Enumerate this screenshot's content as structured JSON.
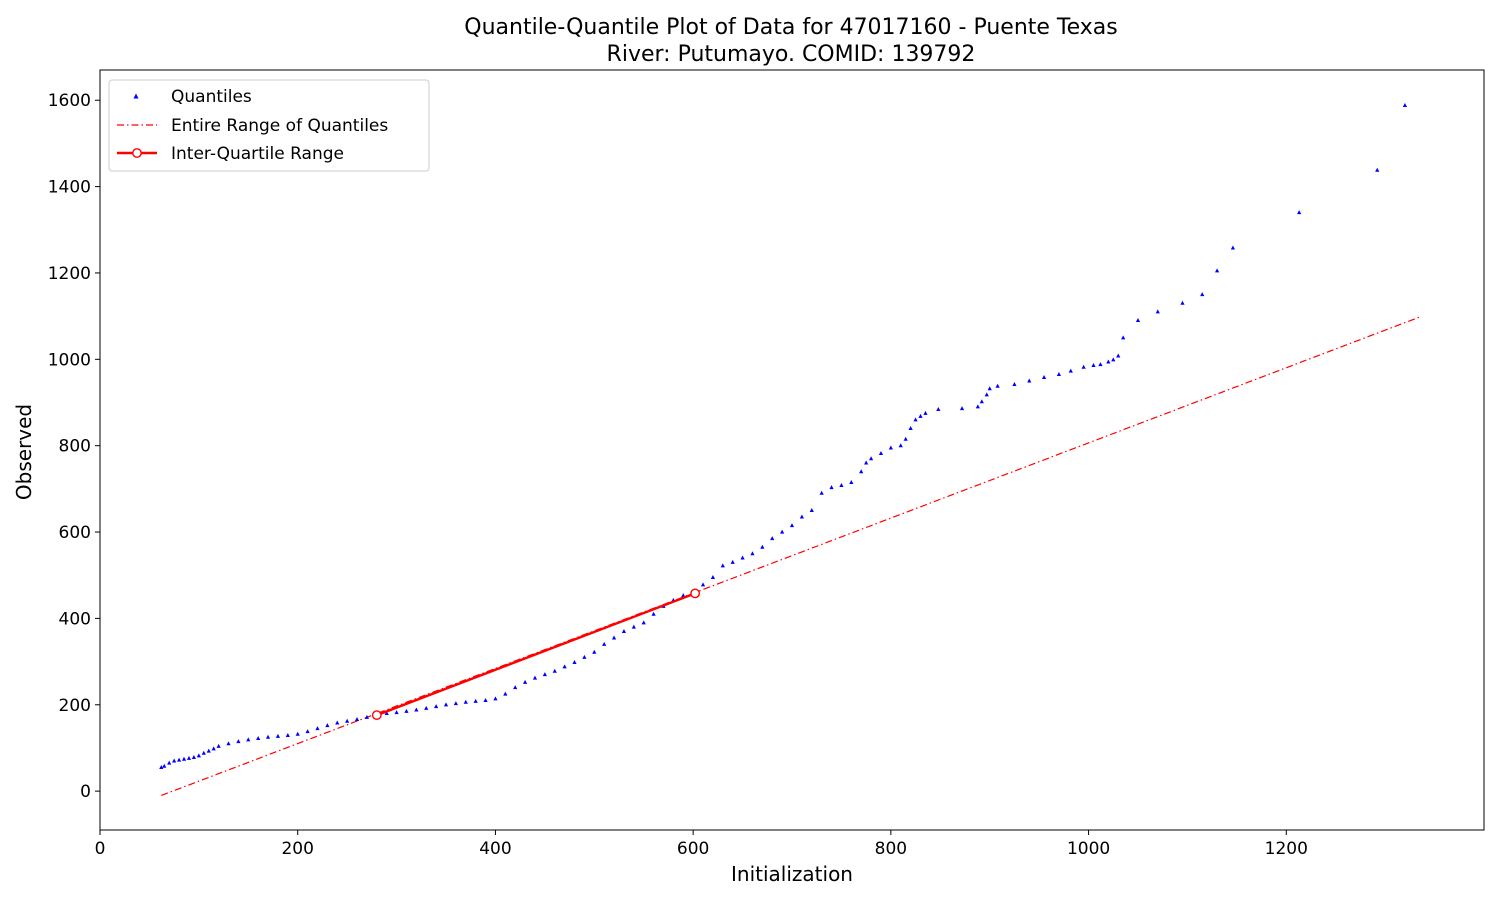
{
  "chart_data": {
    "type": "scatter",
    "title": "Quantile-Quantile Plot of Data for 47017160 - Puente Texas",
    "subtitle": "River: Putumayo. COMID: 139792",
    "xlabel": "Initialization",
    "ylabel": "Observed",
    "xlim": [
      0,
      1400
    ],
    "ylim": [
      -90,
      1670
    ],
    "xticks": [
      0,
      200,
      400,
      600,
      800,
      1000,
      1200
    ],
    "yticks": [
      0,
      200,
      400,
      600,
      800,
      1000,
      1200,
      1400,
      1600
    ],
    "grid": false,
    "legend_position": "upper-left",
    "legend": [
      "Quantiles",
      "Entire Range of Quantiles",
      "Inter-Quartile Range"
    ],
    "colors": {
      "quantiles": "#0000ff",
      "entire_range": "#ff0000",
      "iqr": "#ff0000"
    },
    "series": [
      {
        "name": "Quantiles",
        "style": "points",
        "x": [
          62,
          65,
          70,
          75,
          80,
          85,
          90,
          95,
          100,
          105,
          110,
          115,
          120,
          130,
          140,
          150,
          160,
          170,
          180,
          190,
          200,
          210,
          220,
          230,
          240,
          250,
          260,
          270,
          280,
          290,
          300,
          310,
          320,
          330,
          340,
          350,
          360,
          370,
          380,
          390,
          400,
          410,
          420,
          430,
          440,
          450,
          460,
          470,
          480,
          490,
          500,
          510,
          520,
          530,
          540,
          550,
          560,
          570,
          580,
          590,
          600,
          610,
          620,
          630,
          640,
          650,
          660,
          670,
          680,
          690,
          700,
          710,
          720,
          730,
          740,
          750,
          760,
          770,
          775,
          780,
          790,
          800,
          810,
          815,
          820,
          825,
          830,
          835,
          848,
          872,
          888,
          892,
          897,
          900,
          908,
          925,
          940,
          955,
          970,
          982,
          995,
          1005,
          1012,
          1020,
          1025,
          1030,
          1035,
          1050,
          1070,
          1095,
          1115,
          1130,
          1146,
          1213,
          1292,
          1320
        ],
        "y": [
          55,
          58,
          65,
          70,
          72,
          74,
          76,
          78,
          82,
          88,
          93,
          98,
          104,
          110,
          115,
          119,
          122,
          125,
          127,
          129,
          132,
          138,
          145,
          152,
          158,
          162,
          166,
          171,
          176,
          180,
          182,
          185,
          188,
          192,
          196,
          200,
          203,
          206,
          208,
          210,
          214,
          225,
          240,
          252,
          262,
          270,
          278,
          288,
          298,
          310,
          322,
          340,
          355,
          370,
          380,
          390,
          410,
          428,
          442,
          453,
          462,
          478,
          495,
          522,
          530,
          540,
          550,
          565,
          585,
          600,
          615,
          635,
          650,
          690,
          703,
          708,
          715,
          740,
          760,
          770,
          782,
          795,
          800,
          815,
          840,
          860,
          868,
          875,
          884,
          886,
          890,
          902,
          918,
          932,
          938,
          942,
          950,
          958,
          965,
          973,
          982,
          986,
          988,
          994,
          999,
          1008,
          1050,
          1090,
          1110,
          1130,
          1150,
          1205,
          1258,
          1340,
          1438,
          1588
        ]
      },
      {
        "name": "Entire Range of Quantiles",
        "style": "dashdot",
        "x": [
          62,
          1335
        ],
        "y": [
          -10,
          1098
        ]
      },
      {
        "name": "Inter-Quartile Range",
        "style": "line-markers",
        "x": [
          280,
          602
        ],
        "y": [
          176,
          458
        ]
      }
    ]
  }
}
